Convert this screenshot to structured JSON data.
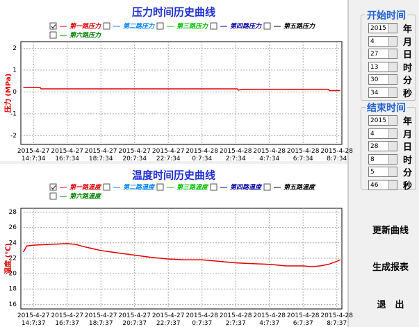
{
  "chart_data": [
    {
      "type": "line",
      "title": "压力时间历史曲线",
      "y_label": "压力 (MPa)",
      "grid": true,
      "xlim": [
        -0.75,
        18.3
      ],
      "ylim": [
        -2.4,
        2.3
      ],
      "xticks": [
        {
          "value": 0,
          "label": "2015-4-27\n14:7:34"
        },
        {
          "value": 2,
          "label": "2015-4-27\n16:7:34"
        },
        {
          "value": 4,
          "label": "2015-4-27\n18:7:34"
        },
        {
          "value": 6,
          "label": "2015-4-27\n20:7:34"
        },
        {
          "value": 8,
          "label": "2015-4-27\n22:7:34"
        },
        {
          "value": 10,
          "label": "2015-4-28\n0:7:34"
        },
        {
          "value": 12,
          "label": "2015-4-28\n2:7:34"
        },
        {
          "value": 14,
          "label": "2015-4-28\n4:7:34"
        },
        {
          "value": 16,
          "label": "2015-4-28\n6:7:34"
        },
        {
          "value": 18,
          "label": "2015-4-28\n8:7:34"
        }
      ],
      "yticks": [
        2,
        1,
        0,
        -1,
        -2
      ],
      "series": [
        {
          "name": "第一路压力",
          "color": "#e00000",
          "checked": true,
          "x": [
            -0.6,
            0.4,
            0.45,
            12.1,
            12.15,
            12.4,
            17.5,
            17.55,
            18.2
          ],
          "values": [
            0.2,
            0.2,
            0.14,
            0.14,
            0.08,
            0.12,
            0.12,
            0.06,
            0.06
          ]
        },
        {
          "name": "第二路压力",
          "color": "#0080ff",
          "checked": false
        },
        {
          "name": "第三路压力",
          "color": "#00c000",
          "checked": false
        },
        {
          "name": "第四路压力",
          "color": "#0000a0",
          "checked": false
        },
        {
          "name": "第五路压力",
          "color": "#000000",
          "checked": false
        },
        {
          "name": "第六路压力",
          "color": "#008000",
          "checked": false
        }
      ]
    },
    {
      "type": "line",
      "title": "温度时间历史曲线",
      "y_label": "温度 (℃)",
      "grid": true,
      "xlim": [
        -0.75,
        18.3
      ],
      "ylim": [
        15.4,
        28.5
      ],
      "xticks": [
        {
          "value": 0,
          "label": "2015-4-27\n14:7:37"
        },
        {
          "value": 2,
          "label": "2015-4-27\n16:7:37"
        },
        {
          "value": 4,
          "label": "2015-4-27\n18:7:37"
        },
        {
          "value": 6,
          "label": "2015-4-27\n20:7:37"
        },
        {
          "value": 8,
          "label": "2015-4-27\n22:7:37"
        },
        {
          "value": 10,
          "label": "2015-4-28\n0:7:37"
        },
        {
          "value": 12,
          "label": "2015-4-28\n2:7:37"
        },
        {
          "value": 14,
          "label": "2015-4-28\n4:7:37"
        },
        {
          "value": 16,
          "label": "2015-4-28\n6:7:37"
        },
        {
          "value": 18,
          "label": "2015-4-28\n8:7:37"
        }
      ],
      "yticks": [
        28,
        26,
        24,
        22,
        20,
        18,
        16
      ],
      "series": [
        {
          "name": "第一路温度",
          "color": "#e00000",
          "checked": true,
          "x": [
            -0.6,
            -0.4,
            0,
            1,
            2,
            2.5,
            3,
            4,
            5,
            6,
            7,
            8,
            9,
            10,
            11,
            12,
            13,
            14,
            15,
            16,
            16.5,
            17,
            17.5,
            18,
            18.2
          ],
          "values": [
            22.8,
            23.6,
            23.7,
            23.8,
            23.9,
            23.8,
            23.5,
            23.0,
            22.7,
            22.4,
            22.1,
            21.9,
            21.8,
            21.8,
            21.6,
            21.4,
            21.3,
            21.2,
            21.0,
            21.0,
            20.9,
            21.0,
            21.2,
            21.6,
            21.8
          ]
        },
        {
          "name": "第二路温度",
          "color": "#0080ff",
          "checked": false
        },
        {
          "name": "第三路温度",
          "color": "#00c000",
          "checked": false
        },
        {
          "name": "第四路温度",
          "color": "#0000a0",
          "checked": false
        },
        {
          "name": "第五路温度",
          "color": "#000000",
          "checked": false
        },
        {
          "name": "第六路温度",
          "color": "#008000",
          "checked": false
        }
      ]
    }
  ],
  "start_group": {
    "title": "开始时间",
    "fields": [
      {
        "value": "2015",
        "unit": "年"
      },
      {
        "value": "4",
        "unit": "月"
      },
      {
        "value": "27",
        "unit": "日"
      },
      {
        "value": "13",
        "unit": "时"
      },
      {
        "value": "30",
        "unit": "分"
      },
      {
        "value": "34",
        "unit": "秒"
      }
    ]
  },
  "end_group": {
    "title": "结束时间",
    "fields": [
      {
        "value": "2015",
        "unit": "年"
      },
      {
        "value": "4",
        "unit": "月"
      },
      {
        "value": "28",
        "unit": "日"
      },
      {
        "value": "8",
        "unit": "时"
      },
      {
        "value": "5",
        "unit": "分"
      },
      {
        "value": "46",
        "unit": "秒"
      }
    ]
  },
  "buttons": [
    "更新曲线",
    "生成报表",
    "退　出"
  ]
}
